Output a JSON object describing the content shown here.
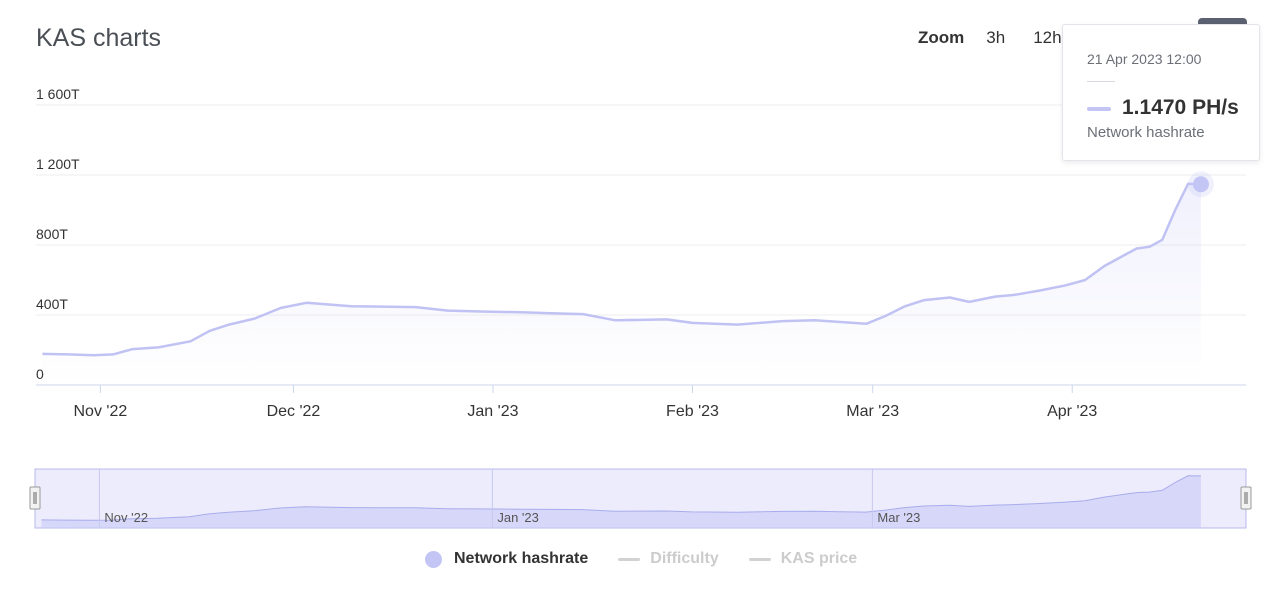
{
  "page": {
    "title": "KAS charts"
  },
  "zoom": {
    "label": "Zoom",
    "buttons": [
      "3h",
      "12h"
    ]
  },
  "tooltip": {
    "date": "21 Apr 2023 12:00",
    "value": "1.1470 PH/s",
    "series": "Network hashrate"
  },
  "legend": [
    {
      "label": "Network hashrate",
      "active": true
    },
    {
      "label": "Difficulty",
      "active": false
    },
    {
      "label": "KAS price",
      "active": false
    }
  ],
  "colors": {
    "series": "#c3c6f5",
    "line": "#c0c2f3",
    "navigator_fill": "#dcdcf9",
    "axis": "#ccd6eb",
    "grid": "#eeeeee",
    "inactive": "#cccccc"
  },
  "chart_data": {
    "type": "area",
    "title": "KAS charts",
    "y_tick_labels": [
      "0",
      "400T",
      "800T",
      "1 200T",
      "1 600T"
    ],
    "y_ticks": [
      0,
      400,
      800,
      1200,
      1600
    ],
    "ylim": [
      0,
      1600
    ],
    "x_tick_labels": [
      "Nov '22",
      "Dec '22",
      "Jan '23",
      "Feb '23",
      "Mar '23",
      "Apr '23"
    ],
    "x_ticks": [
      "2022-11-01",
      "2022-12-01",
      "2023-01-01",
      "2023-02-01",
      "2023-03-01",
      "2023-04-01"
    ],
    "xlim": [
      "2022-10-22",
      "2023-04-28"
    ],
    "navigator_tick_labels": [
      "Nov '22",
      "Jan '23",
      "Mar '23"
    ],
    "navigator_ticks": [
      "2022-11-01",
      "2023-01-01",
      "2023-03-01"
    ],
    "grid": true,
    "legend_position": "bottom",
    "series": [
      {
        "name": "Network hashrate",
        "unit": "TH/s",
        "x": [
          "2022-10-23",
          "2022-10-27",
          "2022-10-31",
          "2022-11-03",
          "2022-11-06",
          "2022-11-10",
          "2022-11-15",
          "2022-11-18",
          "2022-11-21",
          "2022-11-25",
          "2022-11-29",
          "2022-12-03",
          "2022-12-10",
          "2022-12-20",
          "2022-12-25",
          "2022-12-30",
          "2023-01-06",
          "2023-01-10",
          "2023-01-15",
          "2023-01-20",
          "2023-01-28",
          "2023-02-01",
          "2023-02-08",
          "2023-02-15",
          "2023-02-20",
          "2023-02-24",
          "2023-02-28",
          "2023-03-03",
          "2023-03-06",
          "2023-03-09",
          "2023-03-13",
          "2023-03-16",
          "2023-03-20",
          "2023-03-23",
          "2023-03-27",
          "2023-03-31",
          "2023-04-03",
          "2023-04-06",
          "2023-04-09",
          "2023-04-11",
          "2023-04-13",
          "2023-04-15",
          "2023-04-17",
          "2023-04-19",
          "2023-04-21"
        ],
        "values": [
          178,
          175,
          170,
          175,
          205,
          215,
          250,
          310,
          345,
          380,
          440,
          470,
          450,
          445,
          425,
          420,
          415,
          410,
          405,
          370,
          375,
          355,
          345,
          365,
          370,
          360,
          350,
          395,
          450,
          485,
          500,
          475,
          505,
          515,
          540,
          570,
          600,
          680,
          740,
          780,
          790,
          830,
          1000,
          1150,
          1147
        ]
      }
    ]
  }
}
